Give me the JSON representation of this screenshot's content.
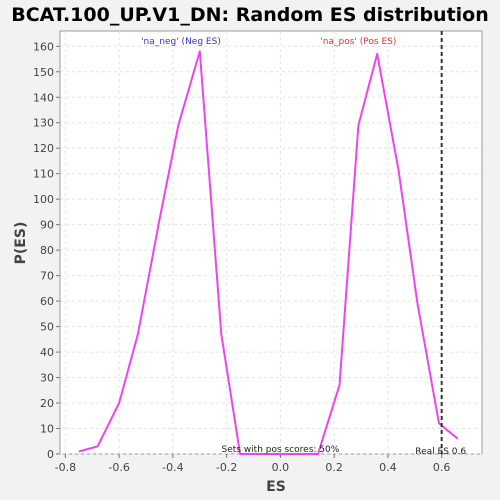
{
  "chart_data": {
    "type": "line",
    "title": "BCAT.100_UP.V1_DN: Random ES distribution",
    "xlabel": "ES",
    "ylabel": "P(ES)",
    "xlim": [
      -0.82,
      0.75
    ],
    "ylim": [
      0,
      166
    ],
    "x_ticks": [
      -0.8,
      -0.6,
      -0.4,
      -0.2,
      0.0,
      0.2,
      0.4,
      0.6
    ],
    "x_tick_labels": [
      "-0.8",
      "-0.6",
      "-0.4",
      "-0.2",
      "0.0",
      "0.2",
      "0.4",
      "0.6"
    ],
    "y_ticks": [
      0,
      10,
      20,
      30,
      40,
      50,
      60,
      70,
      80,
      90,
      100,
      110,
      120,
      130,
      140,
      150,
      160
    ],
    "grid": true,
    "series": [
      {
        "color": "#ee44ee",
        "x": [
          -0.75,
          -0.68,
          -0.6,
          -0.53,
          -0.45,
          -0.38,
          -0.3,
          -0.22,
          -0.15,
          -0.07,
          0.0,
          0.07,
          0.14,
          0.22,
          0.29,
          0.36,
          0.44,
          0.51,
          0.59,
          0.66
        ],
        "y": [
          1,
          3,
          20,
          47,
          92,
          129,
          158,
          47,
          0,
          0,
          0,
          0,
          0,
          27,
          129,
          157,
          111,
          59,
          12,
          6
        ]
      }
    ],
    "annotations": {
      "neg_label": "'na_neg' (Neg ES)",
      "pos_label": "'na_pos' (Pos ES)",
      "sets_label": "Sets with pos scores: 50%",
      "real_es_label": "Real ES 0.6",
      "real_es_value": 0.6
    },
    "colors": {
      "neg": "#3333cc",
      "pos": "#dd3333",
      "real_es_line": "#333333"
    }
  }
}
